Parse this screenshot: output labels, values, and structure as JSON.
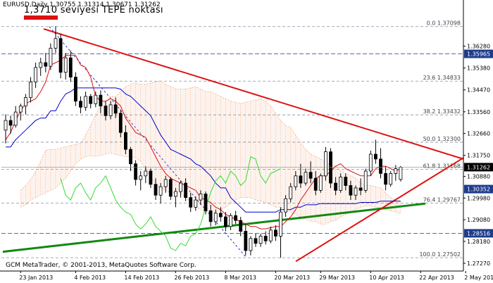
{
  "window": {
    "symbol_header": "EURUSD,Daily  1.30755 1.31314 1.30671 1.31262",
    "annotation": "1,3710 seviyesi TEPE noktası",
    "copyright": "GCM MetaTrader, © 2001-2013, MetaQuotes Software Corp."
  },
  "colors": {
    "background": "#ffffff",
    "bull_candle": "#ffffff",
    "bear_candle": "#000000",
    "triangle_lines": "#dd1111",
    "support_line": "#118811",
    "tenkan": "#dd1111",
    "kijun": "#0000cc",
    "chikou": "#33dd33",
    "kumo": "#f0a070",
    "grid": "#8090a8",
    "current_price_box": "#000000",
    "level_box": "#1e3c8c"
  },
  "chart_data": {
    "type": "candlestick",
    "symbol": "EURUSD",
    "timeframe": "Daily",
    "ohlc_last": {
      "open": 1.30755,
      "high": 1.31314,
      "low": 1.30671,
      "close": 1.31262
    },
    "ylim": [
      1.2695,
      1.3785
    ],
    "x_labels": [
      "23 Jan 2013",
      "4 Feb 2013",
      "14 Feb 2013",
      "26 Feb 2013",
      "8 Mar 2013",
      "20 Mar 2013",
      "29 Mar 2013",
      "10 Apr 2013",
      "22 Apr 2013",
      "2 May 2013"
    ],
    "y_ticks": [
      "1.36280",
      "1.35380",
      "1.34470",
      "1.33560",
      "1.32660",
      "1.31750",
      "1.30880",
      "1.29980",
      "1.29080",
      "1.28180",
      "1.27270"
    ],
    "price_boxes": [
      {
        "value": "1.35965",
        "price": 1.35965,
        "kind": "level"
      },
      {
        "value": "1.31262",
        "price": 1.31262,
        "kind": "current"
      },
      {
        "value": "1.30352",
        "price": 1.30352,
        "kind": "level"
      },
      {
        "value": "1.28516",
        "price": 1.28516,
        "kind": "level"
      }
    ],
    "fibonacci": [
      {
        "label": "0.0 1.37098",
        "price": 1.37098
      },
      {
        "label": "23.6 1.34833",
        "price": 1.34833
      },
      {
        "label": "38.2 1.33432",
        "price": 1.33432
      },
      {
        "label": "50.0 1.32300",
        "price": 1.323
      },
      {
        "label": "61.8 1.31168",
        "price": 1.31168
      },
      {
        "label": "76.4 1.29767",
        "price": 1.29767
      },
      {
        "label": "100.0 1.27502",
        "price": 1.27502
      }
    ],
    "candles": [
      {
        "o": 1.328,
        "h": 1.3345,
        "l": 1.3225,
        "c": 1.332
      },
      {
        "o": 1.332,
        "h": 1.334,
        "l": 1.3265,
        "c": 1.33
      },
      {
        "o": 1.33,
        "h": 1.338,
        "l": 1.329,
        "c": 1.3355
      },
      {
        "o": 1.3355,
        "h": 1.339,
        "l": 1.332,
        "c": 1.338
      },
      {
        "o": 1.338,
        "h": 1.343,
        "l": 1.3345,
        "c": 1.3415
      },
      {
        "o": 1.3415,
        "h": 1.35,
        "l": 1.3395,
        "c": 1.348
      },
      {
        "o": 1.348,
        "h": 1.356,
        "l": 1.3455,
        "c": 1.354
      },
      {
        "o": 1.354,
        "h": 1.358,
        "l": 1.3505,
        "c": 1.356
      },
      {
        "o": 1.356,
        "h": 1.36,
        "l": 1.352,
        "c": 1.3545
      },
      {
        "o": 1.3545,
        "h": 1.364,
        "l": 1.353,
        "c": 1.362
      },
      {
        "o": 1.362,
        "h": 1.3711,
        "l": 1.36,
        "c": 1.366
      },
      {
        "o": 1.366,
        "h": 1.368,
        "l": 1.3495,
        "c": 1.352
      },
      {
        "o": 1.352,
        "h": 1.36,
        "l": 1.349,
        "c": 1.358
      },
      {
        "o": 1.358,
        "h": 1.361,
        "l": 1.348,
        "c": 1.35
      },
      {
        "o": 1.35,
        "h": 1.352,
        "l": 1.338,
        "c": 1.34
      },
      {
        "o": 1.34,
        "h": 1.342,
        "l": 1.335,
        "c": 1.3375
      },
      {
        "o": 1.3375,
        "h": 1.344,
        "l": 1.336,
        "c": 1.342
      },
      {
        "o": 1.342,
        "h": 1.343,
        "l": 1.337,
        "c": 1.339
      },
      {
        "o": 1.339,
        "h": 1.344,
        "l": 1.3375,
        "c": 1.3425
      },
      {
        "o": 1.3425,
        "h": 1.3445,
        "l": 1.335,
        "c": 1.338
      },
      {
        "o": 1.338,
        "h": 1.34,
        "l": 1.332,
        "c": 1.334
      },
      {
        "o": 1.334,
        "h": 1.34,
        "l": 1.3325,
        "c": 1.3385
      },
      {
        "o": 1.3385,
        "h": 1.3415,
        "l": 1.333,
        "c": 1.335
      },
      {
        "o": 1.335,
        "h": 1.3365,
        "l": 1.325,
        "c": 1.327
      },
      {
        "o": 1.327,
        "h": 1.33,
        "l": 1.318,
        "c": 1.32
      },
      {
        "o": 1.32,
        "h": 1.321,
        "l": 1.311,
        "c": 1.314
      },
      {
        "o": 1.314,
        "h": 1.3155,
        "l": 1.305,
        "c": 1.3075
      },
      {
        "o": 1.3075,
        "h": 1.311,
        "l": 1.303,
        "c": 1.309
      },
      {
        "o": 1.309,
        "h": 1.313,
        "l": 1.306,
        "c": 1.311
      },
      {
        "o": 1.311,
        "h": 1.312,
        "l": 1.304,
        "c": 1.3055
      },
      {
        "o": 1.3055,
        "h": 1.308,
        "l": 1.299,
        "c": 1.301
      },
      {
        "o": 1.301,
        "h": 1.306,
        "l": 1.2975,
        "c": 1.3045
      },
      {
        "o": 1.3045,
        "h": 1.309,
        "l": 1.302,
        "c": 1.3075
      },
      {
        "o": 1.3075,
        "h": 1.3085,
        "l": 1.299,
        "c": 1.3005
      },
      {
        "o": 1.3005,
        "h": 1.304,
        "l": 1.296,
        "c": 1.3025
      },
      {
        "o": 1.3025,
        "h": 1.307,
        "l": 1.3,
        "c": 1.306
      },
      {
        "o": 1.306,
        "h": 1.308,
        "l": 1.2985,
        "c": 1.3
      },
      {
        "o": 1.3,
        "h": 1.302,
        "l": 1.294,
        "c": 1.296
      },
      {
        "o": 1.296,
        "h": 1.3005,
        "l": 1.2945,
        "c": 1.299
      },
      {
        "o": 1.299,
        "h": 1.303,
        "l": 1.297,
        "c": 1.3015
      },
      {
        "o": 1.3015,
        "h": 1.3025,
        "l": 1.293,
        "c": 1.2945
      },
      {
        "o": 1.2945,
        "h": 1.297,
        "l": 1.288,
        "c": 1.29
      },
      {
        "o": 1.29,
        "h": 1.295,
        "l": 1.2885,
        "c": 1.2935
      },
      {
        "o": 1.2935,
        "h": 1.296,
        "l": 1.29,
        "c": 1.292
      },
      {
        "o": 1.292,
        "h": 1.294,
        "l": 1.286,
        "c": 1.288
      },
      {
        "o": 1.288,
        "h": 1.2935,
        "l": 1.2865,
        "c": 1.2925
      },
      {
        "o": 1.2925,
        "h": 1.2945,
        "l": 1.289,
        "c": 1.2905
      },
      {
        "o": 1.2905,
        "h": 1.292,
        "l": 1.284,
        "c": 1.286
      },
      {
        "o": 1.286,
        "h": 1.289,
        "l": 1.276,
        "c": 1.278
      },
      {
        "o": 1.278,
        "h": 1.284,
        "l": 1.276,
        "c": 1.283
      },
      {
        "o": 1.283,
        "h": 1.285,
        "l": 1.2795,
        "c": 1.281
      },
      {
        "o": 1.281,
        "h": 1.285,
        "l": 1.2795,
        "c": 1.284
      },
      {
        "o": 1.284,
        "h": 1.286,
        "l": 1.2805,
        "c": 1.282
      },
      {
        "o": 1.282,
        "h": 1.288,
        "l": 1.281,
        "c": 1.2865
      },
      {
        "o": 1.2865,
        "h": 1.2885,
        "l": 1.282,
        "c": 1.284
      },
      {
        "o": 1.284,
        "h": 1.296,
        "l": 1.275,
        "c": 1.294
      },
      {
        "o": 1.294,
        "h": 1.301,
        "l": 1.292,
        "c": 1.2995
      },
      {
        "o": 1.2995,
        "h": 1.306,
        "l": 1.298,
        "c": 1.3045
      },
      {
        "o": 1.3045,
        "h": 1.311,
        "l": 1.303,
        "c": 1.309
      },
      {
        "o": 1.309,
        "h": 1.314,
        "l": 1.304,
        "c": 1.306
      },
      {
        "o": 1.306,
        "h": 1.312,
        "l": 1.305,
        "c": 1.3105
      },
      {
        "o": 1.3105,
        "h": 1.315,
        "l": 1.306,
        "c": 1.308
      },
      {
        "o": 1.308,
        "h": 1.311,
        "l": 1.301,
        "c": 1.303
      },
      {
        "o": 1.303,
        "h": 1.31,
        "l": 1.302,
        "c": 1.309
      },
      {
        "o": 1.309,
        "h": 1.321,
        "l": 1.307,
        "c": 1.319
      },
      {
        "o": 1.319,
        "h": 1.3205,
        "l": 1.304,
        "c": 1.306
      },
      {
        "o": 1.306,
        "h": 1.3085,
        "l": 1.301,
        "c": 1.303
      },
      {
        "o": 1.303,
        "h": 1.31,
        "l": 1.302,
        "c": 1.3085
      },
      {
        "o": 1.3085,
        "h": 1.31,
        "l": 1.303,
        "c": 1.305
      },
      {
        "o": 1.305,
        "h": 1.307,
        "l": 1.299,
        "c": 1.301
      },
      {
        "o": 1.301,
        "h": 1.305,
        "l": 1.299,
        "c": 1.304
      },
      {
        "o": 1.304,
        "h": 1.308,
        "l": 1.301,
        "c": 1.303
      },
      {
        "o": 1.303,
        "h": 1.312,
        "l": 1.302,
        "c": 1.311
      },
      {
        "o": 1.311,
        "h": 1.3195,
        "l": 1.309,
        "c": 1.318
      },
      {
        "o": 1.318,
        "h": 1.324,
        "l": 1.314,
        "c": 1.316
      },
      {
        "o": 1.316,
        "h": 1.3205,
        "l": 1.308,
        "c": 1.31
      },
      {
        "o": 1.31,
        "h": 1.313,
        "l": 1.303,
        "c": 1.3055
      },
      {
        "o": 1.3055,
        "h": 1.311,
        "l": 1.3045,
        "c": 1.31
      },
      {
        "o": 1.31,
        "h": 1.3135,
        "l": 1.307,
        "c": 1.312
      },
      {
        "o": 1.3075,
        "h": 1.3131,
        "l": 1.3067,
        "c": 1.3126
      }
    ],
    "kumo_top": [
      1.303,
      1.305,
      1.3075,
      1.311,
      1.315,
      1.3195,
      1.32,
      1.32,
      1.3205,
      1.321,
      1.3215,
      1.322,
      1.3225,
      1.326,
      1.33,
      1.3345,
      1.338,
      1.34,
      1.342,
      1.342,
      1.344,
      1.346,
      1.347,
      1.3475,
      1.347,
      1.347,
      1.3475,
      1.348,
      1.3485,
      1.347,
      1.346,
      1.345,
      1.345,
      1.345,
      1.3455,
      1.346,
      1.345,
      1.344,
      1.344,
      1.343,
      1.342,
      1.341,
      1.34,
      1.3395,
      1.339,
      1.3395,
      1.34,
      1.3405,
      1.341,
      1.34,
      1.338,
      1.335,
      1.332,
      1.33,
      1.329,
      1.326,
      1.323,
      1.32,
      1.318,
      1.317,
      1.316,
      1.3145,
      1.3135,
      1.313,
      1.311,
      1.31,
      1.309,
      1.308,
      1.306,
      1.305,
      1.305,
      1.3045,
      1.304,
      1.302,
      1.3,
      1.299,
      1.2985
    ],
    "kumo_bottom": [
      1.296,
      1.297,
      1.299,
      1.3,
      1.301,
      1.302,
      1.303,
      1.304,
      1.306,
      1.308,
      1.311,
      1.314,
      1.316,
      1.317,
      1.3175,
      1.317,
      1.3175,
      1.318,
      1.3185,
      1.318,
      1.3175,
      1.317,
      1.317,
      1.3165,
      1.315,
      1.312,
      1.308,
      1.306,
      1.304,
      1.303,
      1.302,
      1.302,
      1.302,
      1.3,
      1.298,
      1.296,
      1.295,
      1.294,
      1.2935,
      1.294,
      1.295,
      1.296,
      1.2975,
      1.299,
      1.3,
      1.3,
      1.3,
      1.299,
      1.2985,
      1.298,
      1.297,
      1.296,
      1.296,
      1.295,
      1.294,
      1.293,
      1.292,
      1.291,
      1.29,
      1.29,
      1.289,
      1.289,
      1.29,
      1.2905,
      1.292,
      1.293,
      1.294,
      1.295,
      1.296,
      1.2965,
      1.2965,
      1.296,
      1.2955,
      1.295,
      1.2945,
      1.294,
      1.2935
    ],
    "tenkan": [
      1.324,
      1.327,
      1.332,
      1.336,
      1.339,
      1.34,
      1.341,
      1.344,
      1.348,
      1.355,
      1.356,
      1.357,
      1.359,
      1.359,
      1.359,
      1.355,
      1.354,
      1.35,
      1.342,
      1.34,
      1.34,
      1.341,
      1.34,
      1.338,
      1.333,
      1.33,
      1.327,
      1.326,
      1.325,
      1.321,
      1.317,
      1.313,
      1.31,
      1.308,
      1.307,
      1.306,
      1.305,
      1.304,
      1.303,
      1.3,
      1.299,
      1.298,
      1.296,
      1.295,
      1.293,
      1.292,
      1.291,
      1.29,
      1.289,
      1.288,
      1.288,
      1.287,
      1.287,
      1.2875,
      1.288,
      1.288,
      1.29,
      1.292,
      1.295,
      1.299,
      1.302,
      1.305,
      1.308,
      1.309,
      1.309,
      1.311,
      1.313,
      1.314,
      1.312,
      1.311,
      1.31,
      1.309,
      1.309,
      1.309,
      1.312,
      1.313,
      1.313,
      1.312,
      1.311,
      1.312
    ],
    "kijun": [
      1.321,
      1.321,
      1.324,
      1.326,
      1.328,
      1.33,
      1.332,
      1.333,
      1.333,
      1.336,
      1.336,
      1.34,
      1.343,
      1.344,
      1.3455,
      1.3455,
      1.3455,
      1.3455,
      1.3455,
      1.3455,
      1.3455,
      1.3455,
      1.3455,
      1.345,
      1.343,
      1.342,
      1.34,
      1.338,
      1.336,
      1.334,
      1.33,
      1.326,
      1.323,
      1.32,
      1.319,
      1.318,
      1.317,
      1.316,
      1.314,
      1.313,
      1.311,
      1.309,
      1.306,
      1.304,
      1.304,
      1.3,
      1.298,
      1.296,
      1.294,
      1.294,
      1.294,
      1.294,
      1.294,
      1.294,
      1.294,
      1.295,
      1.295,
      1.295,
      1.296,
      1.296,
      1.297,
      1.297,
      1.297,
      1.2975,
      1.2975,
      1.2975,
      1.2975,
      1.2975,
      1.2975,
      1.2975,
      1.2975,
      1.298,
      1.298,
      1.298,
      1.298,
      1.2985,
      1.2985,
      1.2985,
      1.2985,
      1.2985
    ],
    "chikou": [
      1.308,
      1.301,
      1.299,
      1.304,
      1.306,
      1.302,
      1.299,
      1.304,
      1.306,
      1.309,
      1.304,
      1.299,
      1.296,
      1.294,
      1.293,
      1.289,
      1.287,
      1.289,
      1.292,
      1.288,
      1.286,
      1.284,
      1.279,
      1.278,
      1.281,
      1.28,
      1.284,
      1.285,
      1.289,
      1.296,
      1.302,
      1.307,
      1.309,
      1.306,
      1.311,
      1.309,
      1.305,
      1.307,
      1.317,
      1.316,
      1.309,
      1.306,
      1.31,
      1.311,
      1.312
    ]
  }
}
